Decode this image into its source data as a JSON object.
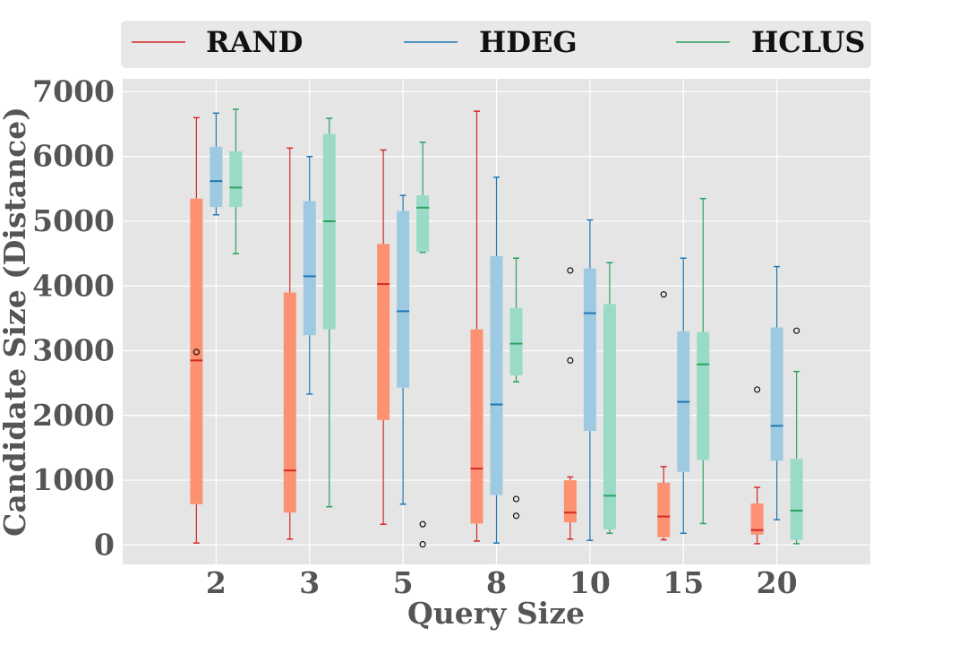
{
  "chart_data": {
    "type": "boxplot",
    "title": "",
    "xlabel": "Query Size",
    "ylabel": "Candidate Size (Distance)",
    "ylim": [
      -300,
      7200
    ],
    "yticks": [
      0,
      1000,
      2000,
      3000,
      4000,
      5000,
      6000,
      7000
    ],
    "grid": true,
    "legend_position": "top",
    "categories": [
      "2",
      "3",
      "5",
      "8",
      "10",
      "15",
      "20"
    ],
    "series": [
      {
        "name": "RAND",
        "line_color": "#d62728",
        "box_color": "#fc9272",
        "median_color": "#d62728",
        "boxes": [
          {
            "whislo": 30,
            "q1": 630,
            "med": 2850,
            "q3": 5350,
            "whishi": 6600,
            "fliers": [
              2980
            ]
          },
          {
            "whislo": 90,
            "q1": 500,
            "med": 1150,
            "q3": 3900,
            "whishi": 6130,
            "fliers": []
          },
          {
            "whislo": 320,
            "q1": 1930,
            "med": 4030,
            "q3": 4650,
            "whishi": 6100,
            "fliers": []
          },
          {
            "whislo": 60,
            "q1": 330,
            "med": 1180,
            "q3": 3330,
            "whishi": 6700,
            "fliers": []
          },
          {
            "whislo": 90,
            "q1": 350,
            "med": 500,
            "q3": 1000,
            "whishi": 1050,
            "fliers": [
              2850,
              4240
            ]
          },
          {
            "whislo": 80,
            "q1": 120,
            "med": 440,
            "q3": 960,
            "whishi": 1210,
            "fliers": [
              3870
            ]
          },
          {
            "whislo": 20,
            "q1": 160,
            "med": 230,
            "q3": 640,
            "whishi": 890,
            "fliers": [
              2400
            ]
          }
        ]
      },
      {
        "name": "HDEG",
        "line_color": "#1f77b4",
        "box_color": "#9ecae1",
        "median_color": "#1f77b4",
        "boxes": [
          {
            "whislo": 5100,
            "q1": 5220,
            "med": 5620,
            "q3": 6150,
            "whishi": 6670,
            "fliers": []
          },
          {
            "whislo": 2330,
            "q1": 3240,
            "med": 4150,
            "q3": 5310,
            "whishi": 6000,
            "fliers": []
          },
          {
            "whislo": 630,
            "q1": 2430,
            "med": 3610,
            "q3": 5160,
            "whishi": 5400,
            "fliers": []
          },
          {
            "whislo": 30,
            "q1": 770,
            "med": 2170,
            "q3": 4460,
            "whishi": 5680,
            "fliers": []
          },
          {
            "whislo": 70,
            "q1": 1760,
            "med": 3580,
            "q3": 4270,
            "whishi": 5020,
            "fliers": []
          },
          {
            "whislo": 180,
            "q1": 1130,
            "med": 2210,
            "q3": 3300,
            "whishi": 4430,
            "fliers": []
          },
          {
            "whislo": 390,
            "q1": 1300,
            "med": 1840,
            "q3": 3360,
            "whishi": 4300,
            "fliers": []
          }
        ]
      },
      {
        "name": "HCLUS",
        "line_color": "#2ca25f",
        "box_color": "#99dbc6",
        "median_color": "#2ca25f",
        "boxes": [
          {
            "whislo": 4500,
            "q1": 5220,
            "med": 5520,
            "q3": 6080,
            "whishi": 6730,
            "fliers": []
          },
          {
            "whislo": 590,
            "q1": 3330,
            "med": 5000,
            "q3": 6350,
            "whishi": 6590,
            "fliers": []
          },
          {
            "whislo": 4520,
            "q1": 4530,
            "med": 5210,
            "q3": 5400,
            "whishi": 6220,
            "fliers": [
              10,
              320
            ]
          },
          {
            "whislo": 2520,
            "q1": 2620,
            "med": 3110,
            "q3": 3660,
            "whishi": 4430,
            "fliers": [
              450,
              710
            ]
          },
          {
            "whislo": 180,
            "q1": 240,
            "med": 760,
            "q3": 3720,
            "whishi": 4360,
            "fliers": []
          },
          {
            "whislo": 330,
            "q1": 1310,
            "med": 2790,
            "q3": 3290,
            "whishi": 5350,
            "fliers": []
          },
          {
            "whislo": 20,
            "q1": 80,
            "med": 530,
            "q3": 1330,
            "whishi": 2680,
            "fliers": [
              3310
            ]
          }
        ]
      }
    ]
  }
}
